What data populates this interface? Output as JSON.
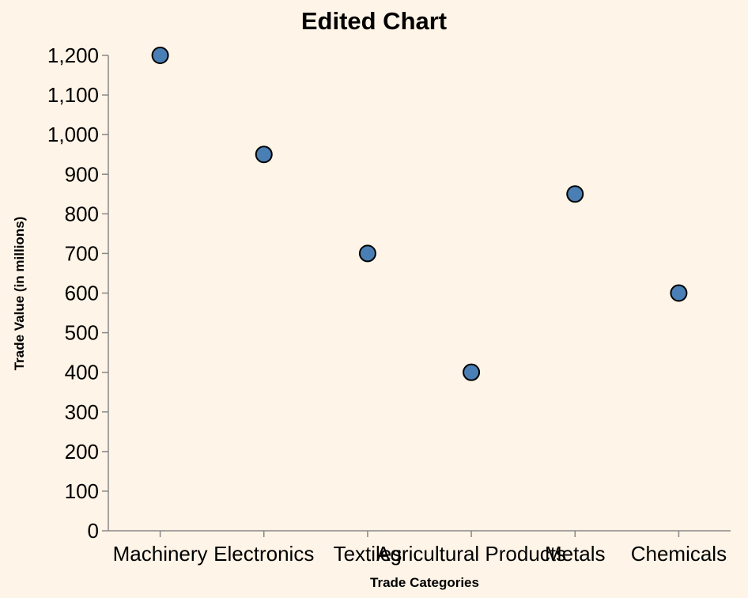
{
  "chart_data": {
    "type": "scatter",
    "title": "Edited Chart",
    "xlabel": "Trade Categories",
    "ylabel": "Trade Value (in millions)",
    "categories": [
      "Machinery",
      "Electronics",
      "Textiles",
      "Agricultural Products",
      "Metals",
      "Chemicals"
    ],
    "values": [
      1200,
      950,
      700,
      400,
      850,
      600
    ],
    "ylim": [
      0,
      1200
    ],
    "yticks": [
      0,
      100,
      200,
      300,
      400,
      500,
      600,
      700,
      800,
      900,
      1000,
      1100,
      1200
    ],
    "ytick_labels": [
      "0",
      "100",
      "200",
      "300",
      "400",
      "500",
      "600",
      "700",
      "800",
      "900",
      "1,000",
      "1,100",
      "1,200"
    ],
    "grid": false,
    "point_color": "#4a7fb5",
    "background": "#fef4e7"
  }
}
